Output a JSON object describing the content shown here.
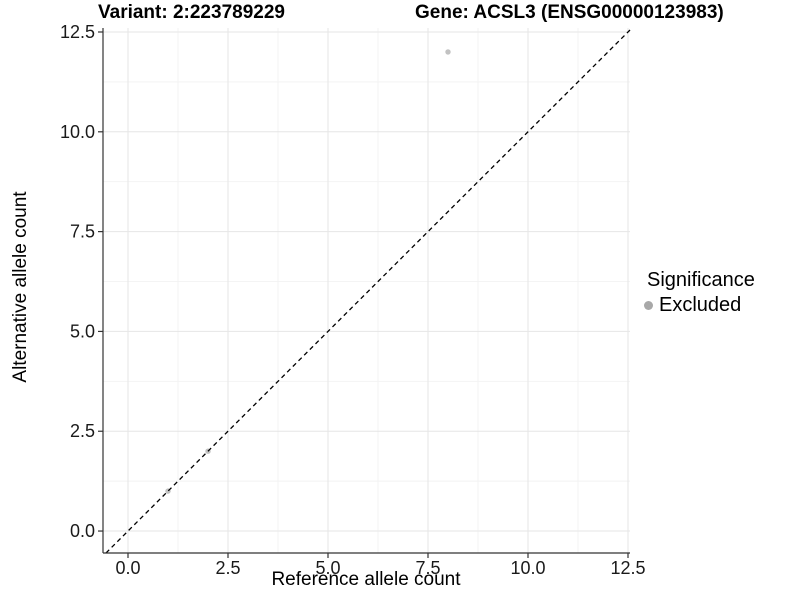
{
  "chart_data": {
    "type": "scatter",
    "title_left": "Variant: 2:223789229",
    "title_right": "Gene: ACSL3 (ENSG00000123983)",
    "xlabel": "Reference allele count",
    "ylabel": "Alternative allele count",
    "x_tick_values": [
      0,
      2.5,
      5,
      7.5,
      10,
      12.5
    ],
    "x_tick_labels": [
      "0.0",
      "2.5",
      "5.0",
      "7.5",
      "10.0",
      "12.5"
    ],
    "y_tick_values": [
      0,
      2.5,
      5,
      7.5,
      10,
      12.5
    ],
    "y_tick_labels": [
      "0.0",
      "2.5",
      "5.0",
      "7.5",
      "10.0",
      "12.5"
    ],
    "xlim": [
      -0.625,
      12.55
    ],
    "ylim": [
      -0.55,
      12.6
    ],
    "grid": {
      "show": true,
      "major_color": "#e6e6e6",
      "minor_color": "#f2f2f2"
    },
    "identity_line": {
      "slope": 1,
      "intercept": 0,
      "style": "dashed",
      "color": "#000000"
    },
    "series": [
      {
        "name": "Excluded",
        "color": "#c2c2c2",
        "point_radius": 2.7,
        "points": [
          [
            1,
            1
          ],
          [
            2,
            2
          ],
          [
            8,
            12
          ]
        ]
      }
    ],
    "legend": {
      "title": "Significance",
      "position": "right",
      "entries": [
        {
          "label": "Excluded",
          "color": "#a8a8a8"
        }
      ]
    },
    "axis_color": "#333333",
    "tick_label_color": "#1a1a1a",
    "text_color": "#000000",
    "background": "#ffffff"
  }
}
